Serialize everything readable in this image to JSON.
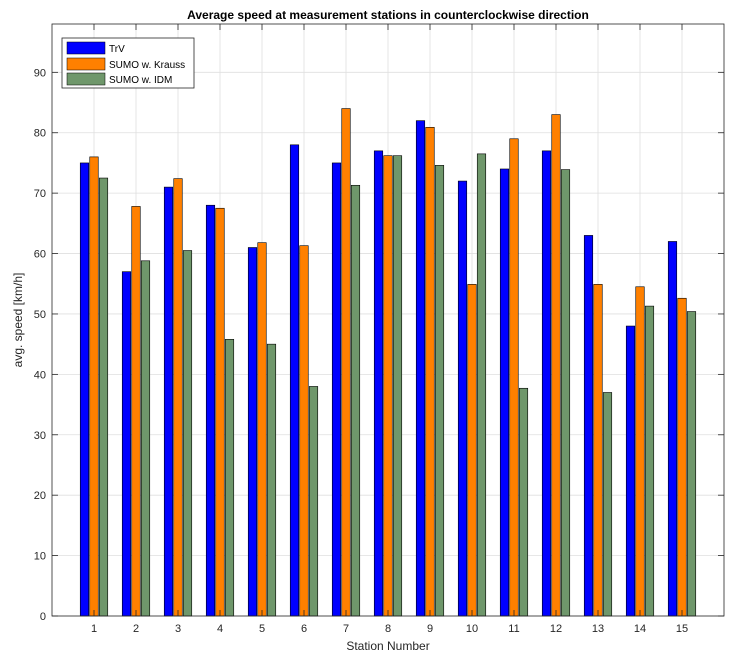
{
  "chart_data": {
    "type": "bar",
    "title": "Average speed at measurement stations in counterclockwise direction",
    "xlabel": "Station Number",
    "ylabel": "avg. speed [km/h]",
    "ylim": [
      0,
      98
    ],
    "yticks": [
      0,
      10,
      20,
      30,
      40,
      50,
      60,
      70,
      80,
      90
    ],
    "grid": true,
    "legend_position": "top-left",
    "categories": [
      "1",
      "2",
      "3",
      "4",
      "5",
      "6",
      "7",
      "8",
      "9",
      "10",
      "11",
      "12",
      "13",
      "14",
      "15"
    ],
    "series": [
      {
        "name": "TrV",
        "color": "#0000ff",
        "values": [
          75,
          57,
          71,
          68,
          61,
          78,
          75,
          77,
          82,
          72,
          74,
          77,
          63,
          48,
          62
        ]
      },
      {
        "name": "SUMO w. Krauss",
        "color": "#ff8000",
        "values": [
          76,
          67.8,
          72.4,
          67.5,
          61.8,
          61.3,
          84,
          76.2,
          80.9,
          54.9,
          79,
          83,
          54.9,
          54.5,
          52.6
        ]
      },
      {
        "name": "SUMO w. IDM",
        "color": "#6f976b",
        "values": [
          72.5,
          58.8,
          60.5,
          45.8,
          45,
          38,
          71.3,
          76.2,
          74.6,
          76.5,
          37.7,
          73.9,
          37,
          51.3,
          50.4
        ]
      }
    ]
  }
}
